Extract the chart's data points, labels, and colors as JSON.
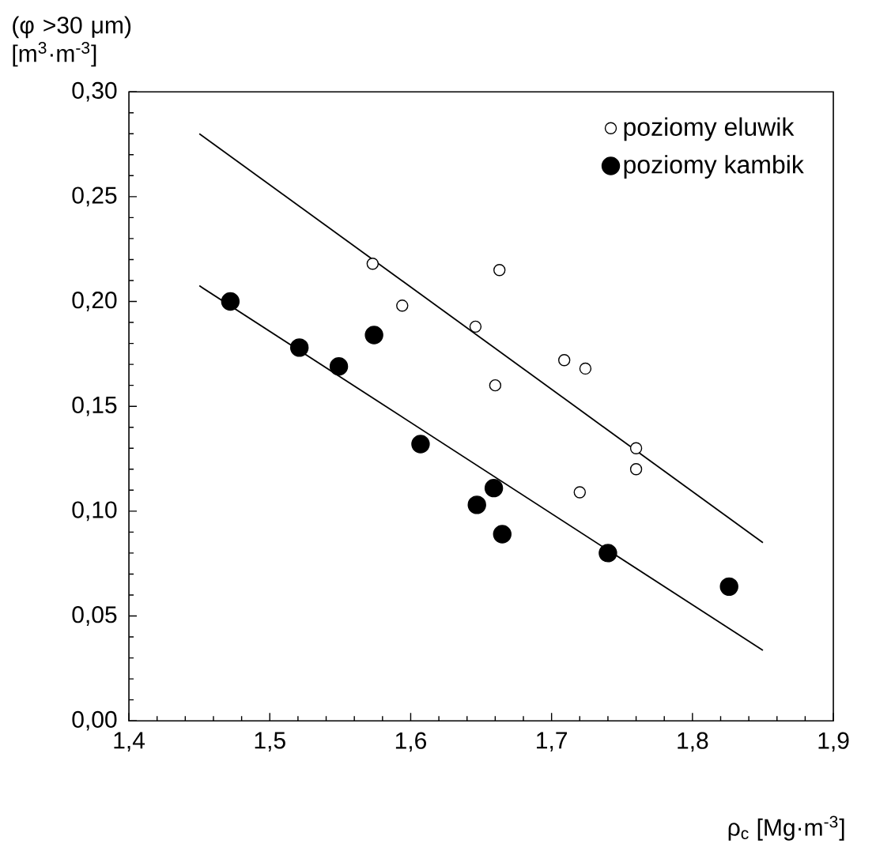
{
  "chart_data": {
    "type": "scatter",
    "xlabel": "ρ$_{c}$ [Mg·m$^{-3}$]",
    "ylabel": "(φ >30 μm) [m$^{3}$·m$^{-3}$]",
    "xlim": [
      1.4,
      1.9
    ],
    "ylim": [
      0,
      0.3
    ],
    "xticks": [
      {
        "value": 1.4,
        "label": "1,4"
      },
      {
        "value": 1.5,
        "label": "1,5"
      },
      {
        "value": 1.6,
        "label": "1,6"
      },
      {
        "value": 1.7,
        "label": "1,7"
      },
      {
        "value": 1.8,
        "label": "1,8"
      },
      {
        "value": 1.9,
        "label": "1,9"
      }
    ],
    "yticks": [
      {
        "value": 0,
        "label": "0,00"
      },
      {
        "value": 0.05,
        "label": "0,05"
      },
      {
        "value": 0.1,
        "label": "0,10"
      },
      {
        "value": 0.15,
        "label": "0,15"
      },
      {
        "value": 0.2,
        "label": "0,20"
      },
      {
        "value": 0.25,
        "label": "0,25"
      },
      {
        "value": 0.3,
        "label": "0,30"
      }
    ],
    "legend": "top right",
    "marker": "circle",
    "grid": false,
    "series": [
      {
        "name": "poziomy eluwik",
        "color": "#ffffff",
        "x": [
          1.573,
          1.594,
          1.646,
          1.663,
          1.709,
          1.724,
          1.66,
          1.72,
          1.76,
          1.76
        ],
        "values": [
          0.218,
          0.198,
          0.188,
          0.215,
          0.172,
          0.168,
          0.16,
          0.109,
          0.13,
          0.12
        ]
      },
      {
        "name": "poziomy kambik",
        "color": "#000000",
        "x": [
          1.472,
          1.521,
          1.549,
          1.574,
          1.607,
          1.659,
          1.647,
          1.665,
          1.74,
          1.826
        ],
        "values": [
          0.2,
          0.178,
          0.169,
          0.184,
          0.132,
          0.111,
          0.103,
          0.089,
          0.08,
          0.064
        ]
      },
      {
        "type": "line",
        "color": "#000000",
        "marker": "none",
        "x": [
          1.45,
          1.85
        ],
        "values": [
          0.28,
          0.085
        ]
      },
      {
        "type": "line",
        "color": "#000000",
        "marker": "none",
        "x": [
          1.45,
          1.85
        ],
        "values": [
          0.2075,
          0.0336
        ]
      }
    ]
  }
}
